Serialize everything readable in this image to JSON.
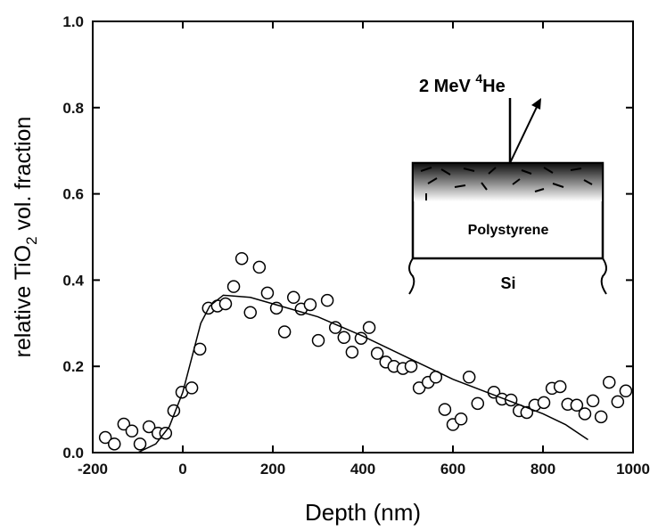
{
  "chart_data": {
    "type": "scatter",
    "xlabel": "Depth (nm)",
    "ylabel": [
      "relative TiO",
      "2",
      " vol. fraction"
    ],
    "xlim": [
      -200,
      1000
    ],
    "ylim": [
      0,
      1
    ],
    "xticks": [
      -200,
      0,
      200,
      400,
      600,
      800,
      1000
    ],
    "yticks": [
      {
        "value": 0,
        "label": "0.0"
      },
      0.2,
      0.4,
      0.6,
      0.8,
      {
        "value": 1,
        "label": "1.0"
      }
    ],
    "x": [
      -172,
      -152,
      -131,
      -113,
      -95,
      -75,
      -55,
      -38,
      -20,
      -2,
      20,
      38,
      57,
      77,
      95,
      113,
      131,
      150,
      170,
      188,
      208,
      226,
      246,
      263,
      283,
      301,
      321,
      339,
      358,
      376,
      396,
      414,
      432,
      451,
      469,
      489,
      507,
      525,
      545,
      562,
      582,
      600,
      618,
      636,
      655,
      691,
      709,
      729,
      747,
      764,
      782,
      802,
      820,
      838,
      855,
      875,
      893,
      911,
      929,
      947,
      966,
      984
    ],
    "values": [
      0.035,
      0.02,
      0.066,
      0.05,
      0.02,
      0.06,
      0.045,
      0.045,
      0.097,
      0.14,
      0.15,
      0.24,
      0.335,
      0.34,
      0.345,
      0.385,
      0.45,
      0.325,
      0.43,
      0.37,
      0.335,
      0.28,
      0.36,
      0.333,
      0.343,
      0.26,
      0.353,
      0.29,
      0.267,
      0.233,
      0.265,
      0.29,
      0.23,
      0.21,
      0.2,
      0.195,
      0.2,
      0.15,
      0.163,
      0.175,
      0.1,
      0.065,
      0.078,
      0.175,
      0.114,
      0.14,
      0.124,
      0.122,
      0.097,
      0.093,
      0.11,
      0.116,
      0.149,
      0.153,
      0.112,
      0.11,
      0.09,
      0.12,
      0.083,
      0.163,
      0.118,
      0.143
    ],
    "fit": {
      "x": [
        -100,
        -60,
        -30,
        0,
        20,
        40,
        60,
        90,
        150,
        200,
        300,
        400,
        500,
        600,
        700,
        800,
        850,
        900
      ],
      "values": [
        0,
        0.02,
        0.06,
        0.14,
        0.22,
        0.3,
        0.34,
        0.365,
        0.36,
        0.345,
        0.315,
        0.27,
        0.22,
        0.17,
        0.13,
        0.09,
        0.065,
        0.03
      ]
    },
    "inset": {
      "beam": [
        "2 MeV ",
        "4",
        "He"
      ],
      "film": "Polystyrene",
      "substrate": "Si"
    }
  }
}
